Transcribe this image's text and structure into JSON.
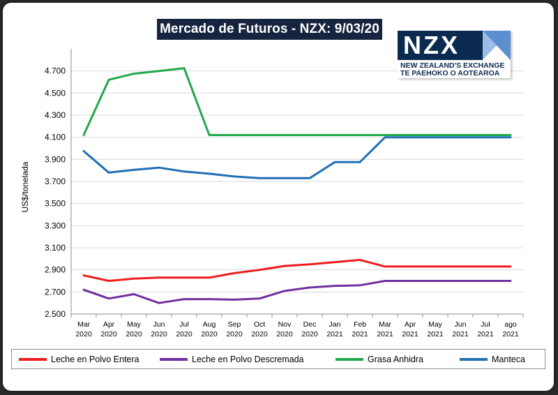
{
  "title": "Mercado de Futuros - NZX: 9/03/20",
  "logo": {
    "word": "NZX",
    "line1": "NEW ZEALAND'S EXCHANGE",
    "line2": "TE PAEHOKO O AOTEAROA"
  },
  "colors": {
    "entera": "#ee1c1c",
    "descremada": "#7030a0",
    "grasa": "#22a84a",
    "manteca": "#1f6fb4",
    "title_bg": "#17243f"
  },
  "chart_data": {
    "type": "line",
    "title": "Mercado de Futuros - NZX: 9/03/20",
    "ylabel": "US$/tonelada",
    "xlabel": "",
    "ylim": [
      2500,
      4900
    ],
    "yticks": [
      2500,
      2700,
      2900,
      3100,
      3300,
      3500,
      3700,
      3900,
      4100,
      4300,
      4500,
      4700
    ],
    "ytick_labels": [
      "2.500",
      "2.700",
      "2.900",
      "3.100",
      "3.300",
      "3.500",
      "3.700",
      "3.900",
      "4.100",
      "4.300",
      "4.500",
      "4.700"
    ],
    "grid": "horizontal",
    "categories": [
      [
        "Mar",
        "2020"
      ],
      [
        "Apr",
        "2020"
      ],
      [
        "May",
        "2020"
      ],
      [
        "Jun",
        "2020"
      ],
      [
        "Jul",
        "2020"
      ],
      [
        "Aug",
        "2020"
      ],
      [
        "Sep",
        "2020"
      ],
      [
        "Oct",
        "2020"
      ],
      [
        "Nov",
        "2020"
      ],
      [
        "Dec",
        "2020"
      ],
      [
        "Jan",
        "2021"
      ],
      [
        "Feb",
        "2021"
      ],
      [
        "Mar",
        "2021"
      ],
      [
        "Apr",
        "2021"
      ],
      [
        "May",
        "2021"
      ],
      [
        "Jun",
        "2021"
      ],
      [
        "Jul",
        "2021"
      ],
      [
        "ago",
        "2021"
      ]
    ],
    "series": [
      {
        "key": "entera",
        "name": "Leche en Polvo Entera",
        "values": [
          2850,
          2800,
          2820,
          2830,
          2830,
          2830,
          2870,
          2900,
          2935,
          2950,
          2970,
          2990,
          2930,
          2930,
          2930,
          2930,
          2930,
          2930
        ]
      },
      {
        "key": "descremada",
        "name": "Leche en Polvo Descremada",
        "values": [
          2720,
          2640,
          2680,
          2600,
          2635,
          2635,
          2630,
          2640,
          2710,
          2740,
          2755,
          2760,
          2800,
          2800,
          2800,
          2800,
          2800,
          2800
        ]
      },
      {
        "key": "grasa",
        "name": "Grasa Anhidra",
        "values": [
          4120,
          4620,
          4675,
          4700,
          4725,
          4120,
          4120,
          4120,
          4120,
          4120,
          4120,
          4120,
          4120,
          4120,
          4120,
          4120,
          4120,
          4120
        ]
      },
      {
        "key": "manteca",
        "name": "Manteca",
        "values": [
          3975,
          3780,
          3805,
          3825,
          3790,
          3770,
          3745,
          3730,
          3730,
          3730,
          3875,
          3875,
          4100,
          4100,
          4100,
          4100,
          4100,
          4100
        ]
      }
    ],
    "legend": "bottom"
  }
}
